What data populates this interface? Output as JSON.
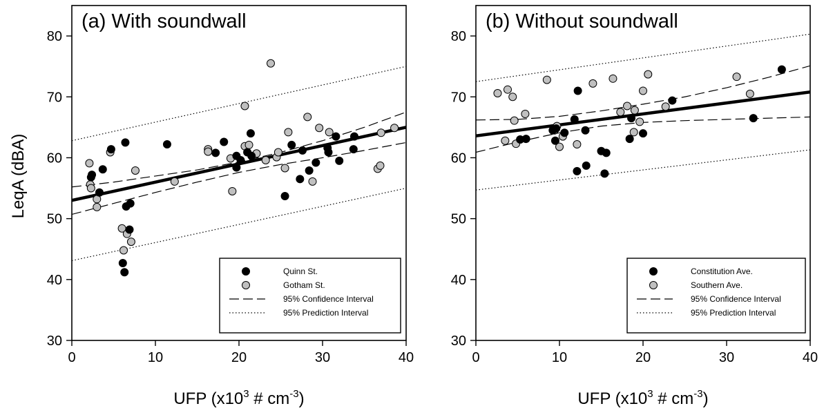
{
  "figure": {
    "ylabel": "LeqA (dBA)",
    "xlabel_main": "UFP (x10",
    "xlabel_sup": "3",
    "xlabel_mid": " # cm",
    "xlabel_sup2": "-3",
    "xlabel_end": ")"
  },
  "chart_data": [
    {
      "type": "scatter",
      "title": "(a) With soundwall",
      "xlabel": "UFP (x10^3 # cm^-3)",
      "ylabel": "LeqA (dBA)",
      "xlim": [
        0,
        40
      ],
      "ylim": [
        30,
        85
      ],
      "xticks": [
        0,
        10,
        20,
        30,
        40
      ],
      "yticks": [
        30,
        40,
        50,
        60,
        70,
        80
      ],
      "grid": false,
      "legend_position": "bottom-right",
      "series": [
        {
          "name": "Quinn St.",
          "color": "#000000",
          "points": [
            [
              2.4,
              57.2
            ],
            [
              2.3,
              56.8
            ],
            [
              3.3,
              54.3
            ],
            [
              3.7,
              58.1
            ],
            [
              4.7,
              61.4
            ],
            [
              6.4,
              62.5
            ],
            [
              6.5,
              52.0
            ],
            [
              7.0,
              52.5
            ],
            [
              6.9,
              48.2
            ],
            [
              6.1,
              42.7
            ],
            [
              6.3,
              41.2
            ],
            [
              11.4,
              62.2
            ],
            [
              17.2,
              60.8
            ],
            [
              18.2,
              62.6
            ],
            [
              19.7,
              60.3
            ],
            [
              19.7,
              58.4
            ],
            [
              20.2,
              59.6
            ],
            [
              21.0,
              60.9
            ],
            [
              21.4,
              64.0
            ],
            [
              21.5,
              60.3
            ],
            [
              25.5,
              53.7
            ],
            [
              26.3,
              62.1
            ],
            [
              27.3,
              56.5
            ],
            [
              27.6,
              61.2
            ],
            [
              28.4,
              57.9
            ],
            [
              29.2,
              59.2
            ],
            [
              30.6,
              61.6
            ],
            [
              30.7,
              60.9
            ],
            [
              31.6,
              63.5
            ],
            [
              32.0,
              59.5
            ],
            [
              33.8,
              63.5
            ],
            [
              33.7,
              61.4
            ]
          ]
        },
        {
          "name": "Gotham St.",
          "color": "#c0c0c0",
          "points": [
            [
              2.1,
              59.1
            ],
            [
              2.2,
              55.6
            ],
            [
              2.3,
              55.0
            ],
            [
              3.0,
              53.2
            ],
            [
              3.0,
              51.9
            ],
            [
              4.6,
              60.9
            ],
            [
              6.0,
              48.4
            ],
            [
              6.2,
              44.8
            ],
            [
              6.6,
              47.5
            ],
            [
              7.1,
              46.2
            ],
            [
              7.6,
              57.9
            ],
            [
              12.3,
              56.1
            ],
            [
              16.3,
              61.4
            ],
            [
              16.3,
              61.0
            ],
            [
              19.0,
              59.9
            ],
            [
              19.2,
              54.5
            ],
            [
              20.7,
              61.9
            ],
            [
              20.7,
              68.5
            ],
            [
              21.2,
              62.1
            ],
            [
              22.1,
              60.7
            ],
            [
              23.2,
              59.6
            ],
            [
              23.8,
              75.5
            ],
            [
              24.5,
              60.1
            ],
            [
              24.7,
              60.9
            ],
            [
              25.5,
              58.3
            ],
            [
              25.9,
              64.2
            ],
            [
              28.2,
              66.7
            ],
            [
              28.8,
              56.1
            ],
            [
              29.6,
              64.9
            ],
            [
              30.8,
              64.2
            ],
            [
              36.6,
              58.2
            ],
            [
              36.9,
              58.7
            ],
            [
              37.0,
              64.1
            ],
            [
              38.6,
              64.9
            ]
          ]
        }
      ],
      "fit": {
        "x": [
          0,
          40
        ],
        "y": [
          53.0,
          65.0
        ]
      },
      "confidence_upper": {
        "x": [
          0,
          5,
          10,
          15,
          20,
          25,
          30,
          35,
          40
        ],
        "y": [
          55.2,
          56.0,
          57.0,
          58.0,
          59.3,
          60.9,
          62.8,
          65.0,
          67.5
        ]
      },
      "confidence_lower": {
        "x": [
          0,
          5,
          10,
          15,
          20,
          25,
          30,
          35,
          40
        ],
        "y": [
          50.7,
          52.5,
          54.3,
          56.0,
          57.6,
          58.9,
          60.0,
          61.2,
          62.5
        ]
      },
      "prediction_upper": {
        "x": [
          0,
          40
        ],
        "y": [
          62.8,
          75.0
        ]
      },
      "prediction_lower": {
        "x": [
          0,
          40
        ],
        "y": [
          43.1,
          55.0
        ]
      },
      "legend": [
        {
          "label": "Quinn St.",
          "kind": "marker",
          "color": "#000000"
        },
        {
          "label": "Gotham St.",
          "kind": "marker",
          "color": "#c0c0c0"
        },
        {
          "label": "95% Confidence Interval",
          "kind": "dashed"
        },
        {
          "label": "95% Prediction Interval",
          "kind": "dotted"
        }
      ]
    },
    {
      "type": "scatter",
      "title": "(b) Without soundwall",
      "xlabel": "UFP (x10^3 # cm^-3)",
      "ylabel": "",
      "xlim": [
        0,
        40
      ],
      "ylim": [
        30,
        85
      ],
      "xticks": [
        0,
        10,
        20,
        30,
        40
      ],
      "yticks": [
        30,
        40,
        50,
        60,
        70,
        80
      ],
      "grid": false,
      "legend_position": "bottom-right",
      "series": [
        {
          "name": "Constitution Ave.",
          "color": "#000000",
          "points": [
            [
              5.3,
              63.0
            ],
            [
              6.0,
              63.1
            ],
            [
              9.2,
              64.5
            ],
            [
              9.5,
              62.8
            ],
            [
              9.6,
              64.8
            ],
            [
              10.6,
              64.1
            ],
            [
              11.8,
              66.3
            ],
            [
              12.1,
              57.8
            ],
            [
              12.2,
              71.0
            ],
            [
              13.1,
              64.5
            ],
            [
              13.2,
              58.7
            ],
            [
              15.0,
              61.1
            ],
            [
              15.4,
              57.4
            ],
            [
              15.6,
              60.8
            ],
            [
              18.4,
              63.1
            ],
            [
              18.6,
              66.5
            ],
            [
              20.0,
              64.0
            ],
            [
              23.5,
              69.4
            ],
            [
              33.2,
              66.5
            ],
            [
              36.6,
              74.5
            ]
          ]
        },
        {
          "name": "Southern Ave.",
          "color": "#c0c0c0",
          "points": [
            [
              2.6,
              70.6
            ],
            [
              3.5,
              62.8
            ],
            [
              3.8,
              71.2
            ],
            [
              4.4,
              70.0
            ],
            [
              4.6,
              66.1
            ],
            [
              4.8,
              62.3
            ],
            [
              5.9,
              67.2
            ],
            [
              8.5,
              72.8
            ],
            [
              9.4,
              64.5
            ],
            [
              9.7,
              65.2
            ],
            [
              10.0,
              61.8
            ],
            [
              10.4,
              63.5
            ],
            [
              12.1,
              62.2
            ],
            [
              14.0,
              72.2
            ],
            [
              16.4,
              73.0
            ],
            [
              17.3,
              67.5
            ],
            [
              18.1,
              68.5
            ],
            [
              18.9,
              64.2
            ],
            [
              19.0,
              67.8
            ],
            [
              19.6,
              65.9
            ],
            [
              20.0,
              71.0
            ],
            [
              20.6,
              73.7
            ],
            [
              22.7,
              68.4
            ],
            [
              31.2,
              73.3
            ],
            [
              32.8,
              70.5
            ]
          ]
        }
      ],
      "fit": {
        "x": [
          0,
          40
        ],
        "y": [
          63.6,
          70.8
        ]
      },
      "confidence_upper": {
        "x": [
          0,
          5,
          10,
          15,
          20,
          25,
          30,
          35,
          40
        ],
        "y": [
          66.2,
          66.3,
          66.8,
          67.7,
          68.8,
          70.0,
          71.5,
          73.2,
          75.1
        ]
      },
      "confidence_lower": {
        "x": [
          0,
          5,
          10,
          15,
          20,
          25,
          30,
          35,
          40
        ],
        "y": [
          60.9,
          62.6,
          64.1,
          65.2,
          65.8,
          66.1,
          66.3,
          66.5,
          66.7
        ]
      },
      "prediction_upper": {
        "x": [
          0,
          40
        ],
        "y": [
          72.5,
          80.3
        ]
      },
      "prediction_lower": {
        "x": [
          0,
          40
        ],
        "y": [
          54.7,
          61.3
        ]
      },
      "legend": [
        {
          "label": "Constitution Ave.",
          "kind": "marker",
          "color": "#000000"
        },
        {
          "label": "Southern Ave.",
          "kind": "marker",
          "color": "#c0c0c0"
        },
        {
          "label": "95% Confidence Interval",
          "kind": "dashed"
        },
        {
          "label": "95% Prediction Interval",
          "kind": "dotted"
        }
      ]
    }
  ]
}
